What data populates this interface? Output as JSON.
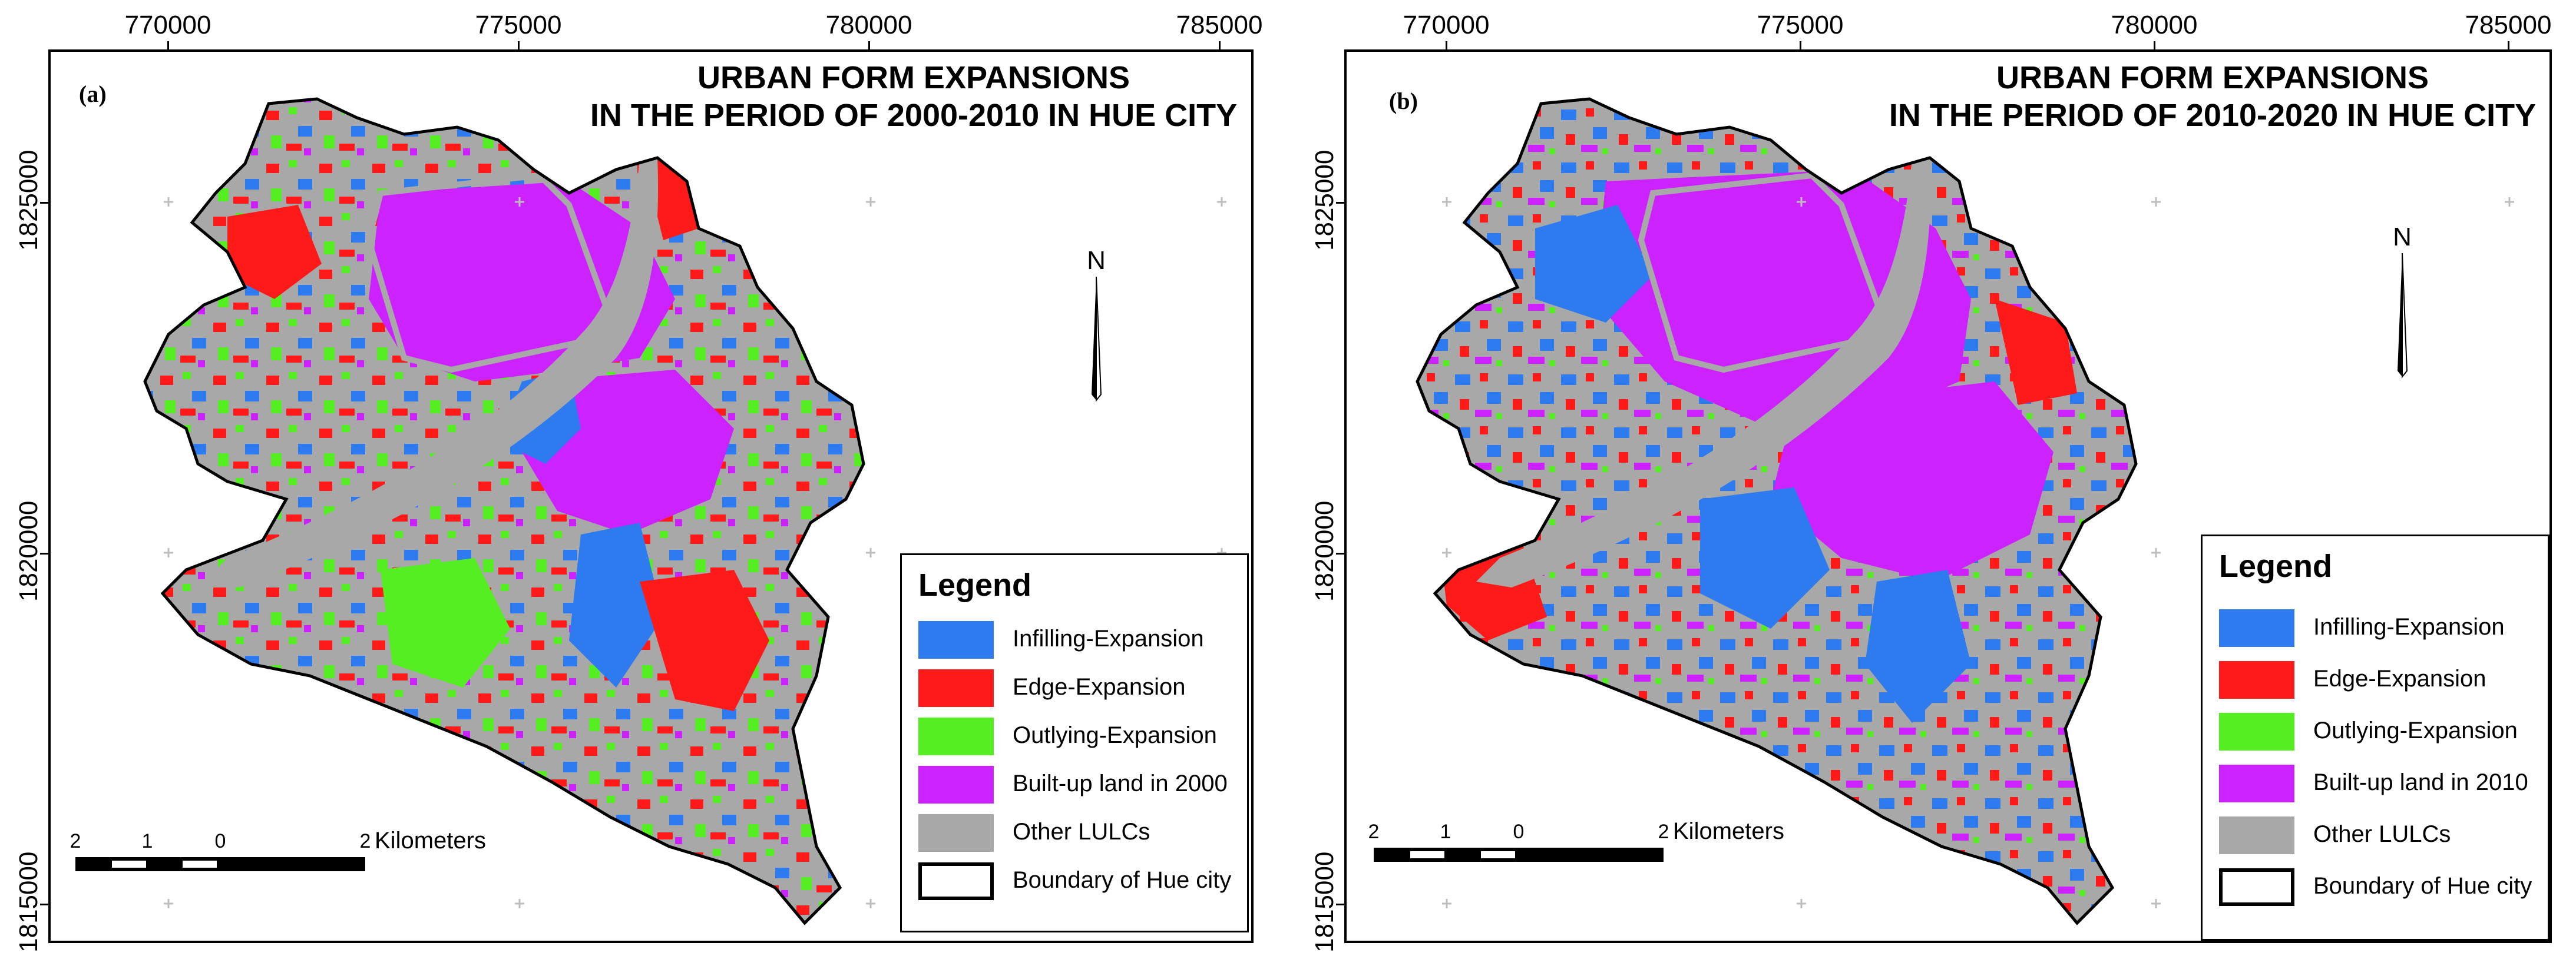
{
  "colors": {
    "infilling": "#2e7bf0",
    "edge": "#ff1a1a",
    "outlying": "#55ee22",
    "builtup": "#cc22ff",
    "other": "#a8a8a8",
    "boundary": "#000000"
  },
  "axes": {
    "x_ticks": [
      "770000",
      "775000",
      "780000",
      "785000"
    ],
    "y_ticks": [
      "1825000",
      "1820000",
      "1815000"
    ]
  },
  "north_label": "N",
  "panels": [
    {
      "label": "(a)",
      "title_line1": "URBAN FORM EXPANSIONS",
      "title_line2": "IN THE PERIOD OF 2000-2010 IN HUE CITY",
      "legend": {
        "title": "Legend",
        "items": [
          {
            "label": "Infilling-Expansion",
            "color_key": "infilling"
          },
          {
            "label": "Edge-Expansion",
            "color_key": "edge"
          },
          {
            "label": "Outlying-Expansion",
            "color_key": "outlying"
          },
          {
            "label": "Built-up land in 2000",
            "color_key": "builtup"
          },
          {
            "label": "Other LULCs",
            "color_key": "other"
          },
          {
            "label": "Boundary of Hue city",
            "color_key": "boundary"
          }
        ]
      },
      "scale": {
        "ticks": [
          "2",
          "1",
          "0",
          "2"
        ],
        "unit": "Kilometers"
      }
    },
    {
      "label": "(b)",
      "title_line1": "URBAN FORM EXPANSIONS",
      "title_line2": "IN THE PERIOD OF 2010-2020 IN HUE CITY",
      "legend": {
        "title": "Legend",
        "items": [
          {
            "label": "Infilling-Expansion",
            "color_key": "infilling"
          },
          {
            "label": "Edge-Expansion",
            "color_key": "edge"
          },
          {
            "label": "Outlying-Expansion",
            "color_key": "outlying"
          },
          {
            "label": "Built-up land in 2010",
            "color_key": "builtup"
          },
          {
            "label": "Other LULCs",
            "color_key": "other"
          },
          {
            "label": "Boundary of Hue city",
            "color_key": "boundary"
          }
        ]
      },
      "scale": {
        "ticks": [
          "2",
          "1",
          "0",
          "2"
        ],
        "unit": "Kilometers"
      }
    }
  ]
}
